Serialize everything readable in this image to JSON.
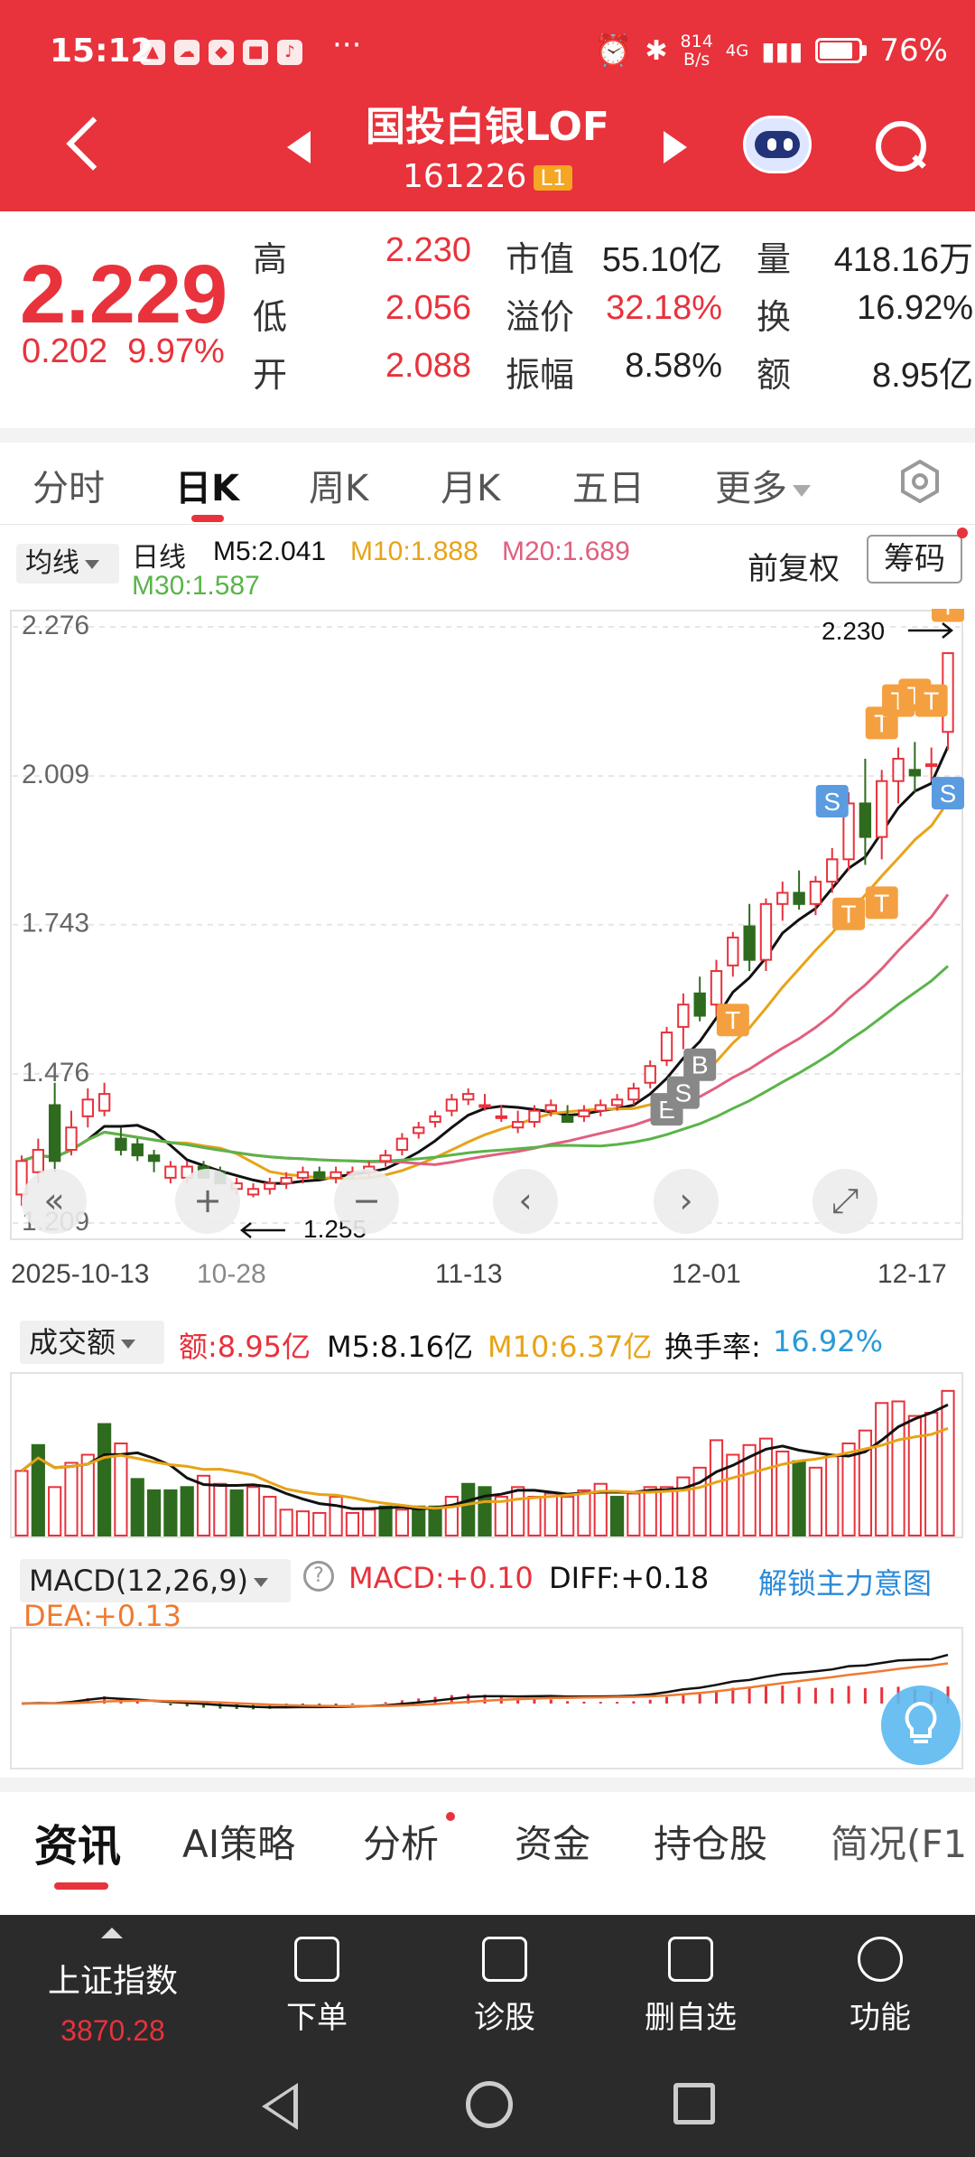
{
  "status_bar": {
    "time": "15:12",
    "more": "···",
    "net_speed_value": "814",
    "net_speed_unit": "B/s",
    "network": "4G",
    "battery": "76%",
    "icons": [
      "alarm-icon",
      "bluetooth-icon",
      "signal-icon",
      "battery-icon"
    ]
  },
  "header": {
    "title": "国投白银LOF",
    "code": "161226",
    "level_badge": "L1",
    "icons": [
      "back-icon",
      "prev-stock-icon",
      "next-stock-icon",
      "ai-robot-icon",
      "search-icon"
    ]
  },
  "quote": {
    "price": "2.229",
    "change": "0.202",
    "change_pct": "9.97%",
    "rows": [
      {
        "l1": "高",
        "v1": "2.230",
        "l2": "市值",
        "v2": "55.10亿",
        "l3": "量",
        "v3": "418.16万"
      },
      {
        "l1": "低",
        "v1": "2.056",
        "l2": "溢价",
        "v2": "32.18%",
        "l3": "换",
        "v3": "16.92%"
      },
      {
        "l1": "开",
        "v1": "2.088",
        "l2": "振幅",
        "v2": "8.58%",
        "l3": "额",
        "v3": "8.95亿"
      }
    ]
  },
  "period_tabs": {
    "items": [
      "分时",
      "日K",
      "周K",
      "月K",
      "五日",
      "更多"
    ],
    "active": "日K"
  },
  "ma_legend": {
    "select_label": "均线",
    "kind": "日线",
    "m5": "M5:2.041",
    "m10": "M10:1.888",
    "m20": "M20:1.689",
    "m30": "M30:1.587",
    "adjust_mode": "前复权",
    "chip_button": "筹码",
    "colors": {
      "m5": "#111111",
      "m10": "#e8a317",
      "m20": "#e0607e",
      "m30": "#5ab44a",
      "up": "#e8323c",
      "down": "#2e6b1f"
    }
  },
  "chart_data": [
    {
      "type": "candlestick",
      "title": "日线",
      "y_ticks": [
        "2.276",
        "2.009",
        "1.743",
        "1.476",
        "1.209"
      ],
      "ylim": [
        1.209,
        2.276
      ],
      "x_ticks": [
        "2025-10-13",
        "10-28",
        "11-13",
        "12-01",
        "12-17"
      ],
      "annotations": {
        "high_label": "2.230",
        "low_label": "1.255"
      },
      "trade_markers": [
        "B",
        "S",
        "T"
      ],
      "candles": [
        {
          "o": 1.26,
          "h": 1.33,
          "l": 1.24,
          "c": 1.32
        },
        {
          "o": 1.3,
          "h": 1.36,
          "l": 1.28,
          "c": 1.34
        },
        {
          "o": 1.42,
          "h": 1.46,
          "l": 1.3,
          "c": 1.32
        },
        {
          "o": 1.34,
          "h": 1.41,
          "l": 1.33,
          "c": 1.38
        },
        {
          "o": 1.4,
          "h": 1.45,
          "l": 1.38,
          "c": 1.43
        },
        {
          "o": 1.41,
          "h": 1.46,
          "l": 1.4,
          "c": 1.44
        },
        {
          "o": 1.36,
          "h": 1.38,
          "l": 1.33,
          "c": 1.34
        },
        {
          "o": 1.35,
          "h": 1.36,
          "l": 1.32,
          "c": 1.33
        },
        {
          "o": 1.33,
          "h": 1.34,
          "l": 1.3,
          "c": 1.32
        },
        {
          "o": 1.29,
          "h": 1.32,
          "l": 1.28,
          "c": 1.31
        },
        {
          "o": 1.29,
          "h": 1.32,
          "l": 1.28,
          "c": 1.31
        },
        {
          "o": 1.31,
          "h": 1.32,
          "l": 1.29,
          "c": 1.29
        },
        {
          "o": 1.3,
          "h": 1.31,
          "l": 1.28,
          "c": 1.28
        },
        {
          "o": 1.27,
          "h": 1.29,
          "l": 1.26,
          "c": 1.28
        },
        {
          "o": 1.26,
          "h": 1.28,
          "l": 1.255,
          "c": 1.27
        },
        {
          "o": 1.27,
          "h": 1.29,
          "l": 1.26,
          "c": 1.28
        },
        {
          "o": 1.28,
          "h": 1.3,
          "l": 1.27,
          "c": 1.29
        },
        {
          "o": 1.29,
          "h": 1.31,
          "l": 1.28,
          "c": 1.3
        },
        {
          "o": 1.3,
          "h": 1.31,
          "l": 1.29,
          "c": 1.29
        },
        {
          "o": 1.29,
          "h": 1.31,
          "l": 1.28,
          "c": 1.3
        },
        {
          "o": 1.3,
          "h": 1.31,
          "l": 1.29,
          "c": 1.3
        },
        {
          "o": 1.3,
          "h": 1.32,
          "l": 1.29,
          "c": 1.31
        },
        {
          "o": 1.32,
          "h": 1.34,
          "l": 1.31,
          "c": 1.33
        },
        {
          "o": 1.34,
          "h": 1.37,
          "l": 1.33,
          "c": 1.36
        },
        {
          "o": 1.37,
          "h": 1.39,
          "l": 1.36,
          "c": 1.38
        },
        {
          "o": 1.39,
          "h": 1.41,
          "l": 1.38,
          "c": 1.4
        },
        {
          "o": 1.41,
          "h": 1.44,
          "l": 1.4,
          "c": 1.43
        },
        {
          "o": 1.43,
          "h": 1.45,
          "l": 1.42,
          "c": 1.44
        },
        {
          "o": 1.42,
          "h": 1.44,
          "l": 1.41,
          "c": 1.42
        },
        {
          "o": 1.4,
          "h": 1.42,
          "l": 1.39,
          "c": 1.4
        },
        {
          "o": 1.38,
          "h": 1.41,
          "l": 1.37,
          "c": 1.39
        },
        {
          "o": 1.39,
          "h": 1.42,
          "l": 1.38,
          "c": 1.41
        },
        {
          "o": 1.41,
          "h": 1.43,
          "l": 1.4,
          "c": 1.42
        },
        {
          "o": 1.4,
          "h": 1.42,
          "l": 1.39,
          "c": 1.39
        },
        {
          "o": 1.4,
          "h": 1.42,
          "l": 1.39,
          "c": 1.41
        },
        {
          "o": 1.41,
          "h": 1.43,
          "l": 1.4,
          "c": 1.42
        },
        {
          "o": 1.42,
          "h": 1.44,
          "l": 1.41,
          "c": 1.43
        },
        {
          "o": 1.43,
          "h": 1.46,
          "l": 1.42,
          "c": 1.45
        },
        {
          "o": 1.46,
          "h": 1.5,
          "l": 1.45,
          "c": 1.49
        },
        {
          "o": 1.5,
          "h": 1.56,
          "l": 1.49,
          "c": 1.55
        },
        {
          "o": 1.56,
          "h": 1.62,
          "l": 1.52,
          "c": 1.6
        },
        {
          "o": 1.62,
          "h": 1.65,
          "l": 1.57,
          "c": 1.58
        },
        {
          "o": 1.6,
          "h": 1.68,
          "l": 1.58,
          "c": 1.66
        },
        {
          "o": 1.67,
          "h": 1.73,
          "l": 1.65,
          "c": 1.72
        },
        {
          "o": 1.74,
          "h": 1.78,
          "l": 1.66,
          "c": 1.68
        },
        {
          "o": 1.68,
          "h": 1.79,
          "l": 1.66,
          "c": 1.78
        },
        {
          "o": 1.78,
          "h": 1.82,
          "l": 1.75,
          "c": 1.8
        },
        {
          "o": 1.8,
          "h": 1.84,
          "l": 1.77,
          "c": 1.78
        },
        {
          "o": 1.78,
          "h": 1.83,
          "l": 1.76,
          "c": 1.82
        },
        {
          "o": 1.82,
          "h": 1.88,
          "l": 1.8,
          "c": 1.86
        },
        {
          "o": 1.86,
          "h": 1.98,
          "l": 1.84,
          "c": 1.96
        },
        {
          "o": 1.96,
          "h": 2.04,
          "l": 1.85,
          "c": 1.9
        },
        {
          "o": 1.9,
          "h": 2.02,
          "l": 1.86,
          "c": 2.0
        },
        {
          "o": 2.0,
          "h": 2.06,
          "l": 1.96,
          "c": 2.04
        },
        {
          "o": 2.02,
          "h": 2.07,
          "l": 1.98,
          "c": 2.01
        },
        {
          "o": 2.03,
          "h": 2.06,
          "l": 2.0,
          "c": 2.03
        },
        {
          "o": 2.088,
          "h": 2.23,
          "l": 2.056,
          "c": 2.229
        }
      ]
    },
    {
      "type": "bar",
      "title": "成交额",
      "label": "额:8.95亿",
      "m5": "M5:8.16亿",
      "m10": "M10:6.37亿",
      "turnover_label": "换手率:",
      "turnover_value": "16.92%",
      "values": [
        4.0,
        5.6,
        3.0,
        4.5,
        5.0,
        6.9,
        5.7,
        3.5,
        2.8,
        2.8,
        3.0,
        3.7,
        3.2,
        2.8,
        3.0,
        2.4,
        1.6,
        1.5,
        1.4,
        2.4,
        1.4,
        1.6,
        1.8,
        1.6,
        1.8,
        1.8,
        2.4,
        3.2,
        3.0,
        2.4,
        3.0,
        2.4,
        2.6,
        2.4,
        2.8,
        3.2,
        2.4,
        2.6,
        3.0,
        3.0,
        3.6,
        4.2,
        5.9,
        5.0,
        5.6,
        6.0,
        5.2,
        4.6,
        4.2,
        4.9,
        5.7,
        6.5,
        8.2,
        8.3,
        7.4,
        7.6,
        8.95
      ],
      "down": [
        false,
        true,
        false,
        false,
        false,
        true,
        false,
        true,
        true,
        true,
        true,
        false,
        false,
        true,
        false,
        false,
        false,
        false,
        false,
        false,
        false,
        false,
        true,
        false,
        true,
        true,
        false,
        true,
        true,
        false,
        false,
        false,
        false,
        false,
        false,
        false,
        true,
        false,
        false,
        false,
        false,
        false,
        false,
        false,
        false,
        false,
        false,
        true,
        false,
        false,
        false,
        false,
        false,
        false,
        false,
        false,
        false
      ]
    },
    {
      "type": "line",
      "title": "MACD(12,26,9)",
      "macd_label": "MACD:+0.10",
      "diff_label": "DIFF:+0.18",
      "dea_label": "DEA:+0.13",
      "unlock_label": "解锁主力意图"
    }
  ],
  "info_tabs": {
    "items": [
      "资讯",
      "AI策略",
      "分析",
      "资金",
      "持仓股",
      "简况(F1"
    ],
    "active": "资讯"
  },
  "toolbar": {
    "index_name": "上证指数",
    "index_value": "3870.28",
    "buttons": [
      "下单",
      "诊股",
      "删自选",
      "功能"
    ]
  }
}
